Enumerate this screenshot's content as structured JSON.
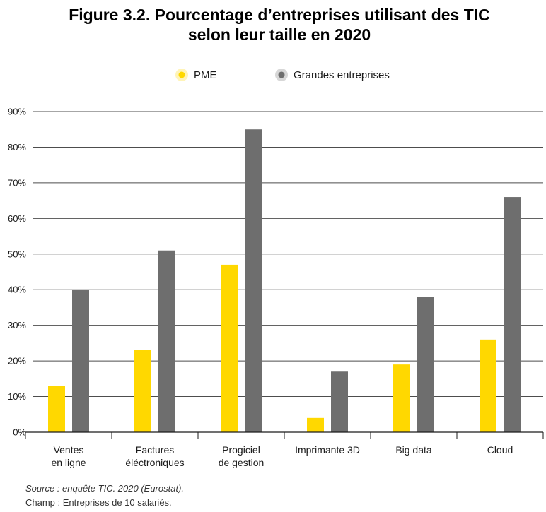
{
  "chart_data": {
    "type": "bar",
    "title": "Figure 3.2. Pourcentage d’entreprises utilisant des TIC",
    "subtitle": "selon leur taille en 2020",
    "categories": [
      [
        "Ventes",
        "en ligne"
      ],
      [
        "Factures",
        "éléctroniques"
      ],
      [
        "Progiciel",
        "de gestion"
      ],
      [
        "Imprimante 3D"
      ],
      [
        "Big data"
      ],
      [
        "Cloud"
      ]
    ],
    "series": [
      {
        "name": "PME",
        "color": "#FFD800",
        "values": [
          13,
          23,
          47,
          4,
          19,
          26
        ]
      },
      {
        "name": "Grandes entreprises",
        "color": "#6E6E6E",
        "values": [
          40,
          51,
          85,
          17,
          38,
          66
        ]
      }
    ],
    "ylim": [
      0,
      90
    ],
    "yticks": [
      0,
      10,
      20,
      30,
      40,
      50,
      60,
      70,
      80,
      90
    ],
    "ytick_labels": [
      "0%",
      "10%",
      "20%",
      "30%",
      "40%",
      "50%",
      "60%",
      "70%",
      "80%",
      "90%"
    ],
    "xlabel": "",
    "ylabel": "",
    "grid": true,
    "legend_position": "top-center"
  },
  "source": "Source : enquête TIC. 2020 (Eurostat).",
  "champ": "Champ : Entreprises de 10 salariés."
}
